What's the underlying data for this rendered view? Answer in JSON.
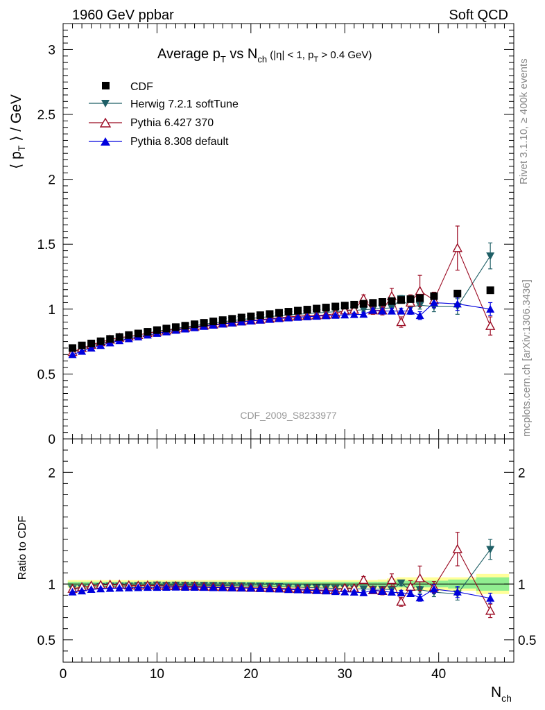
{
  "header": {
    "left": "1960 GeV ppbar",
    "right": "Soft QCD"
  },
  "side_labels": {
    "rivet": "Rivet 3.1.10, ≥ 400k events",
    "mcplots": "mcplots.cern.ch [arXiv:1306.3436]"
  },
  "chart_data": {
    "type": "scatter",
    "title": "Average p_T vs N_ch (|η| < 1, p_T > 0.4 GeV)",
    "analysis_id": "CDF_2009_S8233977",
    "xlabel": "N_ch",
    "xlim": [
      0,
      48
    ],
    "x_ticks": [
      "0",
      "10",
      "20",
      "30",
      "40"
    ],
    "main_panel": {
      "ylabel": "⟨ p_T ⟩ / GeV",
      "ylim": [
        0,
        3.2
      ],
      "y_ticks": [
        "0",
        "0.5",
        "1",
        "1.5",
        "2",
        "2.5",
        "3"
      ]
    },
    "ratio_panel": {
      "ylabel": "Ratio to CDF",
      "ylim": [
        0.3,
        2.3
      ],
      "y_ticks": [
        "0.5",
        "1",
        "2"
      ],
      "band_1sigma_color": "#90ee90",
      "band_2sigma_color": "#ffff99"
    },
    "legend": {
      "position": "top-left"
    },
    "series": [
      {
        "name": "CDF",
        "marker": "square",
        "color": "#000000",
        "x": [
          1,
          2,
          3,
          4,
          5,
          6,
          7,
          8,
          9,
          10,
          11,
          12,
          13,
          14,
          15,
          16,
          17,
          18,
          19,
          20,
          21,
          22,
          23,
          24,
          25,
          26,
          27,
          28,
          29,
          30,
          31,
          32,
          33,
          34,
          35,
          36,
          37,
          38,
          39.5,
          42,
          45.5
        ],
        "y": [
          0.7,
          0.72,
          0.735,
          0.752,
          0.77,
          0.785,
          0.8,
          0.812,
          0.825,
          0.838,
          0.85,
          0.861,
          0.872,
          0.883,
          0.894,
          0.905,
          0.915,
          0.925,
          0.935,
          0.944,
          0.953,
          0.962,
          0.971,
          0.98,
          0.988,
          0.996,
          1.004,
          1.012,
          1.02,
          1.027,
          1.034,
          1.041,
          1.048,
          1.055,
          1.062,
          1.07,
          1.077,
          1.085,
          1.1,
          1.12,
          1.145
        ]
      },
      {
        "name": "Herwig 7.2.1 softTune",
        "marker": "triangle-down",
        "color": "#1f5f66",
        "x": [
          1,
          2,
          3,
          4,
          5,
          6,
          7,
          8,
          9,
          10,
          11,
          12,
          13,
          14,
          15,
          16,
          17,
          18,
          19,
          20,
          21,
          22,
          23,
          24,
          25,
          26,
          27,
          28,
          29,
          30,
          31,
          32,
          33,
          34,
          35,
          36,
          37,
          38,
          39.5,
          42,
          45.5
        ],
        "y": [
          0.67,
          0.69,
          0.715,
          0.735,
          0.755,
          0.77,
          0.785,
          0.8,
          0.815,
          0.83,
          0.84,
          0.852,
          0.862,
          0.873,
          0.883,
          0.893,
          0.902,
          0.911,
          0.919,
          0.927,
          0.935,
          0.942,
          0.949,
          0.955,
          0.96,
          0.965,
          0.97,
          0.975,
          0.98,
          0.985,
          0.99,
          0.995,
          1.0,
          1.005,
          1.01,
          1.08,
          1.015,
          1.03,
          1.02,
          1.02,
          1.41
        ],
        "err": [
          0.005,
          0.005,
          0.005,
          0.005,
          0.005,
          0.005,
          0.005,
          0.005,
          0.005,
          0.005,
          0.005,
          0.005,
          0.005,
          0.005,
          0.005,
          0.005,
          0.005,
          0.005,
          0.005,
          0.005,
          0.005,
          0.005,
          0.005,
          0.005,
          0.006,
          0.006,
          0.007,
          0.008,
          0.009,
          0.01,
          0.012,
          0.014,
          0.016,
          0.018,
          0.02,
          0.025,
          0.03,
          0.03,
          0.04,
          0.06,
          0.1
        ],
        "ratio": [
          0.957,
          0.958,
          0.973,
          0.977,
          0.981,
          0.981,
          0.981,
          0.985,
          0.988,
          0.991,
          0.988,
          0.99,
          0.989,
          0.989,
          0.988,
          0.987,
          0.986,
          0.985,
          0.983,
          0.982,
          0.981,
          0.979,
          0.977,
          0.974,
          0.972,
          0.969,
          0.966,
          0.963,
          0.961,
          0.959,
          0.957,
          0.956,
          0.954,
          0.953,
          0.951,
          1.01,
          0.942,
          0.949,
          0.927,
          0.911,
          1.31
        ],
        "ratio_err": [
          0.007,
          0.007,
          0.007,
          0.007,
          0.007,
          0.007,
          0.007,
          0.007,
          0.007,
          0.007,
          0.007,
          0.007,
          0.007,
          0.007,
          0.007,
          0.007,
          0.007,
          0.007,
          0.007,
          0.007,
          0.007,
          0.007,
          0.007,
          0.007,
          0.007,
          0.007,
          0.008,
          0.009,
          0.01,
          0.011,
          0.012,
          0.014,
          0.016,
          0.018,
          0.02,
          0.025,
          0.03,
          0.03,
          0.04,
          0.055,
          0.09
        ]
      },
      {
        "name": "Pythia 6.427 370",
        "marker": "triangle-up-open",
        "color": "#9b0a22",
        "x": [
          1,
          2,
          3,
          4,
          5,
          6,
          7,
          8,
          9,
          10,
          11,
          12,
          13,
          14,
          15,
          16,
          17,
          18,
          19,
          20,
          21,
          22,
          23,
          24,
          25,
          26,
          27,
          28,
          29,
          30,
          31,
          32,
          33,
          34,
          35,
          36,
          37,
          38,
          39.5,
          42,
          45.5
        ],
        "y": [
          0.67,
          0.7,
          0.725,
          0.745,
          0.765,
          0.78,
          0.79,
          0.8,
          0.815,
          0.825,
          0.835,
          0.845,
          0.855,
          0.865,
          0.873,
          0.881,
          0.889,
          0.897,
          0.905,
          0.912,
          0.919,
          0.926,
          0.933,
          0.94,
          0.945,
          0.95,
          0.952,
          0.955,
          0.965,
          0.99,
          0.995,
          1.08,
          0.99,
          0.99,
          1.1,
          0.9,
          1.05,
          1.14,
          1.07,
          1.47,
          0.87
        ],
        "err": [
          0.005,
          0.005,
          0.005,
          0.005,
          0.005,
          0.005,
          0.005,
          0.005,
          0.005,
          0.005,
          0.005,
          0.005,
          0.005,
          0.005,
          0.005,
          0.005,
          0.005,
          0.005,
          0.005,
          0.005,
          0.005,
          0.005,
          0.005,
          0.005,
          0.006,
          0.006,
          0.007,
          0.008,
          0.01,
          0.012,
          0.015,
          0.03,
          0.03,
          0.035,
          0.06,
          0.04,
          0.06,
          0.12,
          0.06,
          0.17,
          0.07
        ],
        "ratio": [
          0.957,
          0.972,
          0.986,
          0.991,
          0.994,
          0.994,
          0.988,
          0.985,
          0.988,
          0.985,
          0.982,
          0.981,
          0.98,
          0.98,
          0.976,
          0.974,
          0.972,
          0.97,
          0.968,
          0.966,
          0.964,
          0.963,
          0.961,
          0.959,
          0.956,
          0.954,
          0.948,
          0.944,
          0.946,
          0.964,
          0.962,
          1.037,
          0.945,
          0.938,
          1.036,
          0.841,
          0.975,
          1.051,
          0.973,
          1.313,
          0.76
        ],
        "ratio_err": [
          0.007,
          0.007,
          0.007,
          0.007,
          0.007,
          0.007,
          0.007,
          0.007,
          0.007,
          0.007,
          0.007,
          0.007,
          0.007,
          0.007,
          0.007,
          0.007,
          0.007,
          0.007,
          0.007,
          0.007,
          0.007,
          0.007,
          0.007,
          0.007,
          0.007,
          0.007,
          0.008,
          0.009,
          0.01,
          0.012,
          0.015,
          0.03,
          0.03,
          0.035,
          0.055,
          0.04,
          0.055,
          0.11,
          0.05,
          0.15,
          0.06
        ]
      },
      {
        "name": "Pythia 8.308 default",
        "marker": "triangle-up",
        "color": "#0000dd",
        "x": [
          1,
          2,
          3,
          4,
          5,
          6,
          7,
          8,
          9,
          10,
          11,
          12,
          13,
          14,
          15,
          16,
          17,
          18,
          19,
          20,
          21,
          22,
          23,
          24,
          25,
          26,
          27,
          28,
          29,
          30,
          31,
          32,
          33,
          34,
          35,
          36,
          37,
          38,
          39.5,
          42,
          45.5
        ],
        "y": [
          0.65,
          0.675,
          0.7,
          0.72,
          0.74,
          0.757,
          0.772,
          0.786,
          0.8,
          0.813,
          0.825,
          0.837,
          0.847,
          0.857,
          0.867,
          0.876,
          0.885,
          0.893,
          0.901,
          0.908,
          0.915,
          0.921,
          0.927,
          0.932,
          0.937,
          0.941,
          0.945,
          0.949,
          0.952,
          0.955,
          0.958,
          0.96,
          0.99,
          0.985,
          0.985,
          0.985,
          0.985,
          0.95,
          1.05,
          1.04,
          1.0
        ],
        "err": [
          0.005,
          0.005,
          0.005,
          0.005,
          0.005,
          0.005,
          0.005,
          0.005,
          0.005,
          0.005,
          0.005,
          0.005,
          0.005,
          0.005,
          0.005,
          0.005,
          0.005,
          0.005,
          0.005,
          0.005,
          0.005,
          0.005,
          0.005,
          0.005,
          0.006,
          0.006,
          0.007,
          0.008,
          0.009,
          0.01,
          0.012,
          0.014,
          0.016,
          0.018,
          0.02,
          0.022,
          0.025,
          0.03,
          0.04,
          0.05,
          0.05
        ],
        "ratio": [
          0.929,
          0.938,
          0.952,
          0.957,
          0.961,
          0.964,
          0.965,
          0.968,
          0.97,
          0.97,
          0.971,
          0.972,
          0.971,
          0.971,
          0.97,
          0.968,
          0.967,
          0.965,
          0.964,
          0.962,
          0.96,
          0.957,
          0.955,
          0.951,
          0.948,
          0.945,
          0.941,
          0.938,
          0.933,
          0.93,
          0.927,
          0.922,
          0.945,
          0.934,
          0.927,
          0.921,
          0.915,
          0.876,
          0.955,
          0.929,
          0.873
        ],
        "ratio_err": [
          0.007,
          0.007,
          0.007,
          0.007,
          0.007,
          0.007,
          0.007,
          0.007,
          0.007,
          0.007,
          0.007,
          0.007,
          0.007,
          0.007,
          0.007,
          0.007,
          0.007,
          0.007,
          0.007,
          0.007,
          0.007,
          0.007,
          0.007,
          0.007,
          0.007,
          0.007,
          0.008,
          0.009,
          0.01,
          0.011,
          0.012,
          0.014,
          0.016,
          0.018,
          0.02,
          0.022,
          0.025,
          0.03,
          0.04,
          0.05,
          0.045
        ]
      }
    ],
    "data_uncertainty": {
      "x_edges": [
        0.5,
        1.5,
        2.5,
        3.5,
        4.5,
        5.5,
        6.5,
        7.5,
        8.5,
        9.5,
        10.5,
        11.5,
        12.5,
        13.5,
        14.5,
        15.5,
        16.5,
        17.5,
        18.5,
        19.5,
        20.5,
        21.5,
        22.5,
        23.5,
        24.5,
        25.5,
        26.5,
        27.5,
        28.5,
        29.5,
        30.5,
        31.5,
        32.5,
        33.5,
        34.5,
        35.5,
        36.5,
        37.5,
        38.5,
        41,
        44,
        47.5
      ],
      "sigma1": [
        0.02,
        0.02,
        0.02,
        0.02,
        0.02,
        0.02,
        0.02,
        0.02,
        0.02,
        0.02,
        0.02,
        0.02,
        0.02,
        0.02,
        0.02,
        0.02,
        0.02,
        0.02,
        0.02,
        0.02,
        0.02,
        0.02,
        0.02,
        0.02,
        0.02,
        0.02,
        0.02,
        0.02,
        0.02,
        0.02,
        0.02,
        0.02,
        0.02,
        0.02,
        0.03,
        0.03,
        0.03,
        0.03,
        0.03,
        0.04,
        0.06
      ],
      "sigma2": [
        0.035,
        0.035,
        0.035,
        0.035,
        0.035,
        0.035,
        0.035,
        0.035,
        0.035,
        0.035,
        0.035,
        0.035,
        0.035,
        0.035,
        0.035,
        0.035,
        0.035,
        0.035,
        0.035,
        0.035,
        0.035,
        0.035,
        0.035,
        0.035,
        0.035,
        0.035,
        0.035,
        0.035,
        0.035,
        0.035,
        0.035,
        0.035,
        0.035,
        0.04,
        0.05,
        0.06,
        0.06,
        0.06,
        0.06,
        0.06,
        0.09
      ]
    }
  }
}
